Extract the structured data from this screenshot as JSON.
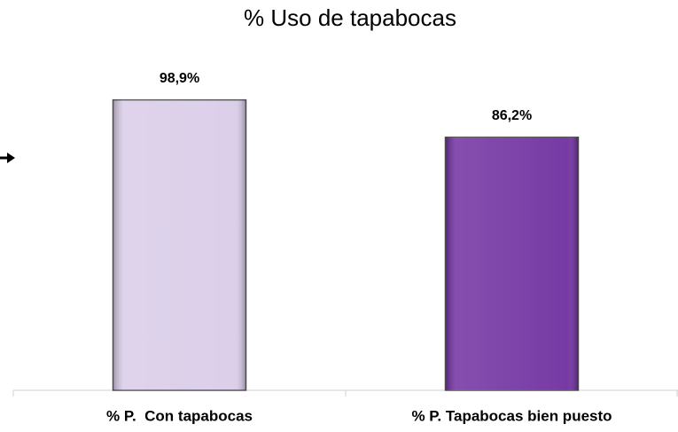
{
  "chart_data": {
    "type": "bar",
    "title": "% Uso de tapabocas",
    "categories": [
      "% P.  Con tapabocas",
      "% P. Tapabocas bien puesto"
    ],
    "values": [
      98.9,
      86.2
    ],
    "value_labels": [
      "98,9%",
      "86,2%"
    ],
    "colors": [
      "#d9cce8",
      "#7030a0"
    ],
    "ylim": [
      0,
      100
    ]
  }
}
